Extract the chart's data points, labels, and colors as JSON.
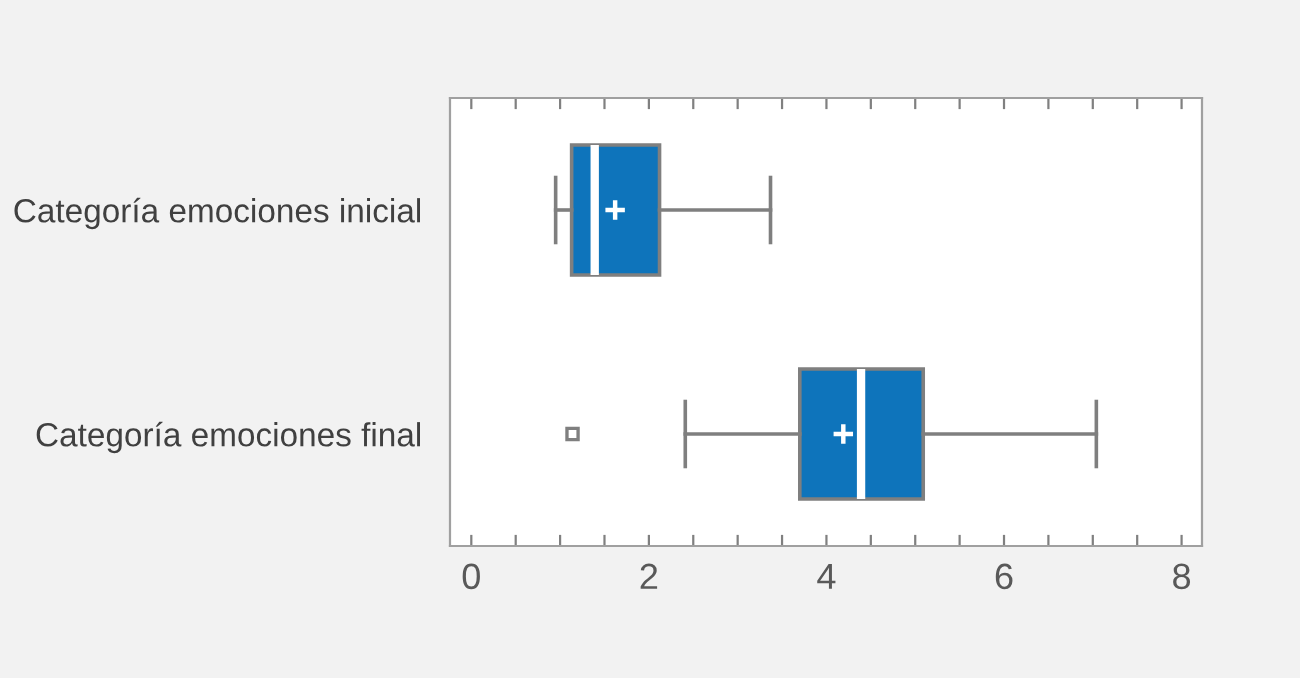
{
  "chart_data": {
    "type": "box",
    "orientation": "horizontal",
    "categories": [
      "Categoría emociones inicial",
      "Categoría emociones final"
    ],
    "boxes": [
      {
        "low": 0.95,
        "q1": 1.13,
        "median": 1.39,
        "q3": 2.12,
        "high": 3.37,
        "mean": 1.62
      },
      {
        "low": 2.41,
        "q1": 3.7,
        "median": 4.39,
        "q3": 5.09,
        "high": 7.04,
        "mean": 4.19,
        "outliers": [
          1.14
        ]
      }
    ],
    "color": "#0e74bb",
    "xlim": [
      -0.24,
      8.23
    ],
    "xticks": [
      0,
      {
        "value": 0.5,
        "label": null
      },
      {
        "value": 1,
        "label": null
      },
      {
        "value": 1.5,
        "label": null
      },
      2,
      {
        "value": 2.5,
        "label": null
      },
      {
        "value": 3,
        "label": null
      },
      {
        "value": 3.5,
        "label": null
      },
      4,
      {
        "value": 4.5,
        "label": null
      },
      {
        "value": 5,
        "label": null
      },
      {
        "value": 5.5,
        "label": null
      },
      6,
      {
        "value": 6.5,
        "label": null
      },
      {
        "value": 7,
        "label": null
      },
      {
        "value": 7.5,
        "label": null
      },
      8
    ],
    "grid": false,
    "legend": false
  }
}
